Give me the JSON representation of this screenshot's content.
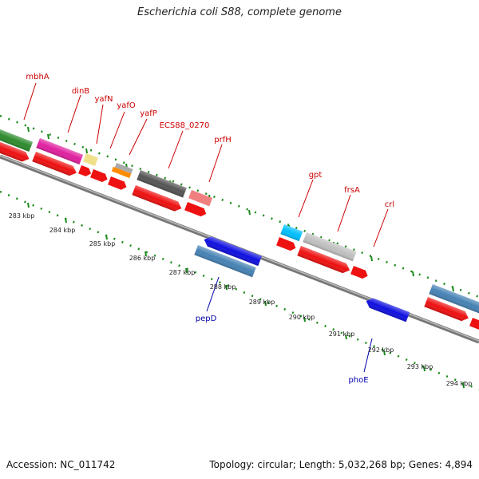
{
  "title": "Escherichia coli S88, complete genome",
  "footer": {
    "accession": "Accession: NC_011742",
    "summary": "Topology: circular; Length: 5,032,268 bp; Genes: 4,894"
  },
  "colors": {
    "backbone": "#888888",
    "tick": "#1a8a1a",
    "label_red": "#cc0000",
    "label_blue": "#0000aa",
    "cds": "#ee1111"
  },
  "outer_features": [
    {
      "name": "",
      "color": "#2e8b2e"
    },
    {
      "name": "",
      "color": "#e020a0"
    },
    {
      "name": "",
      "color": "#f0e08a"
    },
    {
      "name": "",
      "color": "#aaaaaa"
    },
    {
      "name": "",
      "color": "#ff8c00"
    },
    {
      "name": "",
      "color": "#555555"
    },
    {
      "name": "",
      "color": "#f08080"
    },
    {
      "name": "",
      "color": "#00bfff"
    },
    {
      "name": "",
      "color": "#c0c0c0"
    },
    {
      "name": "",
      "color": "#4682b4"
    }
  ],
  "gene_labels_forward": [
    "mbhA",
    "dinB",
    "yafN",
    "yafO",
    "yafP",
    "ECS88_0270",
    "prfH",
    "gpt",
    "frsA",
    "crl"
  ],
  "gene_labels_reverse": [
    "pepD",
    "phoE"
  ],
  "kbp_ticks": [
    "283 kbp",
    "284 kbp",
    "285 kbp",
    "286 kbp",
    "287 kbp",
    "288 kbp",
    "289 kbp",
    "290 kbp",
    "291 kbp",
    "292 kbp",
    "293 kbp",
    "294 kbp"
  ]
}
